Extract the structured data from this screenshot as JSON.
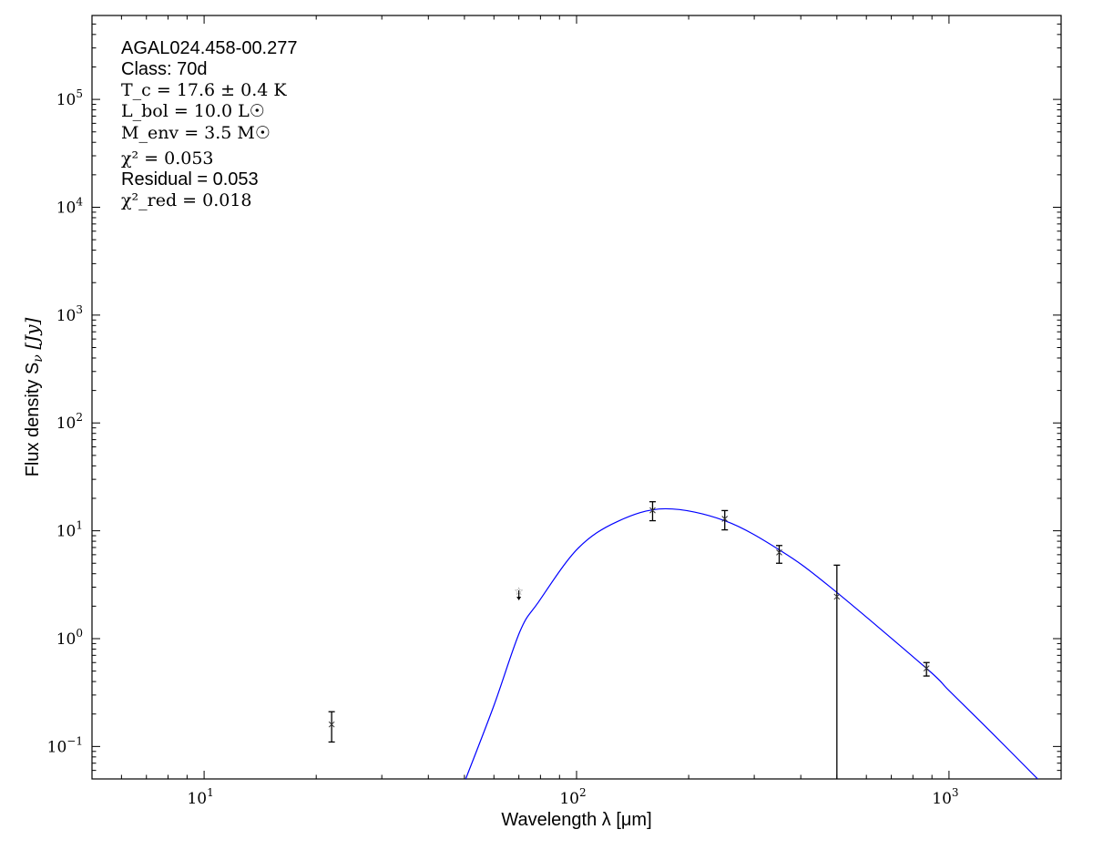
{
  "chart_data": {
    "type": "scatter",
    "xlabel": "Wavelength λ [μm]",
    "ylabel": "Flux density S",
    "ylabel_sub": "ν",
    "ylabel_unit": "[Jy]",
    "xscale": "log",
    "yscale": "log",
    "xlim": [
      5,
      2000
    ],
    "ylim": [
      0.05,
      600000
    ],
    "grid": false,
    "x_ticks": [
      {
        "value": 10,
        "label": "10",
        "exp": "1"
      },
      {
        "value": 100,
        "label": "10",
        "exp": "2"
      },
      {
        "value": 1000,
        "label": "10",
        "exp": "3"
      }
    ],
    "y_ticks": [
      {
        "value": 0.1,
        "label": "10",
        "exp": "−1"
      },
      {
        "value": 1,
        "label": "10",
        "exp": "0"
      },
      {
        "value": 10,
        "label": "10",
        "exp": "1"
      },
      {
        "value": 100,
        "label": "10",
        "exp": "2"
      },
      {
        "value": 1000,
        "label": "10",
        "exp": "3"
      },
      {
        "value": 10000,
        "label": "10",
        "exp": "4"
      },
      {
        "value": 100000,
        "label": "10",
        "exp": "5"
      }
    ],
    "annotations": {
      "source": "AGAL024.458-00.277",
      "class": "Class: 70d",
      "tc": "T_c = 17.6 ± 0.4 K",
      "lbol": "L_bol = 10.0 L☉",
      "menv": "M_env = 3.5 M☉",
      "chi2": "χ² = 0.053",
      "residual": "Residual = 0.053",
      "chi2red": "χ²_red = 0.018"
    },
    "points": [
      {
        "x": 22,
        "y": 0.16,
        "ylo": 0.11,
        "yhi": 0.21,
        "upper_limit": false
      },
      {
        "x": 70,
        "y": 2.8,
        "upper_limit": true
      },
      {
        "x": 160,
        "y": 15.5,
        "ylo": 12.4,
        "yhi": 18.6,
        "upper_limit": false
      },
      {
        "x": 250,
        "y": 12.9,
        "ylo": 10.2,
        "yhi": 15.4,
        "upper_limit": false
      },
      {
        "x": 350,
        "y": 6.3,
        "ylo": 5.0,
        "yhi": 7.3,
        "upper_limit": false
      },
      {
        "x": 500,
        "y": 2.45,
        "ylo": 0.05,
        "yhi": 4.8,
        "upper_limit": false
      },
      {
        "x": 870,
        "y": 0.53,
        "ylo": 0.45,
        "yhi": 0.6,
        "upper_limit": false
      }
    ],
    "model": {
      "color": "#0000ff",
      "x": [
        50.4,
        60,
        70.5,
        79,
        100.6,
        128.8,
        173,
        250,
        354,
        478,
        870,
        1000,
        1300,
        1730
      ],
      "y": [
        0.05,
        0.24,
        1.17,
        2.18,
        6.8,
        12.2,
        16.0,
        12.4,
        6.5,
        3.04,
        0.53,
        0.33,
        0.135,
        0.05
      ]
    }
  }
}
